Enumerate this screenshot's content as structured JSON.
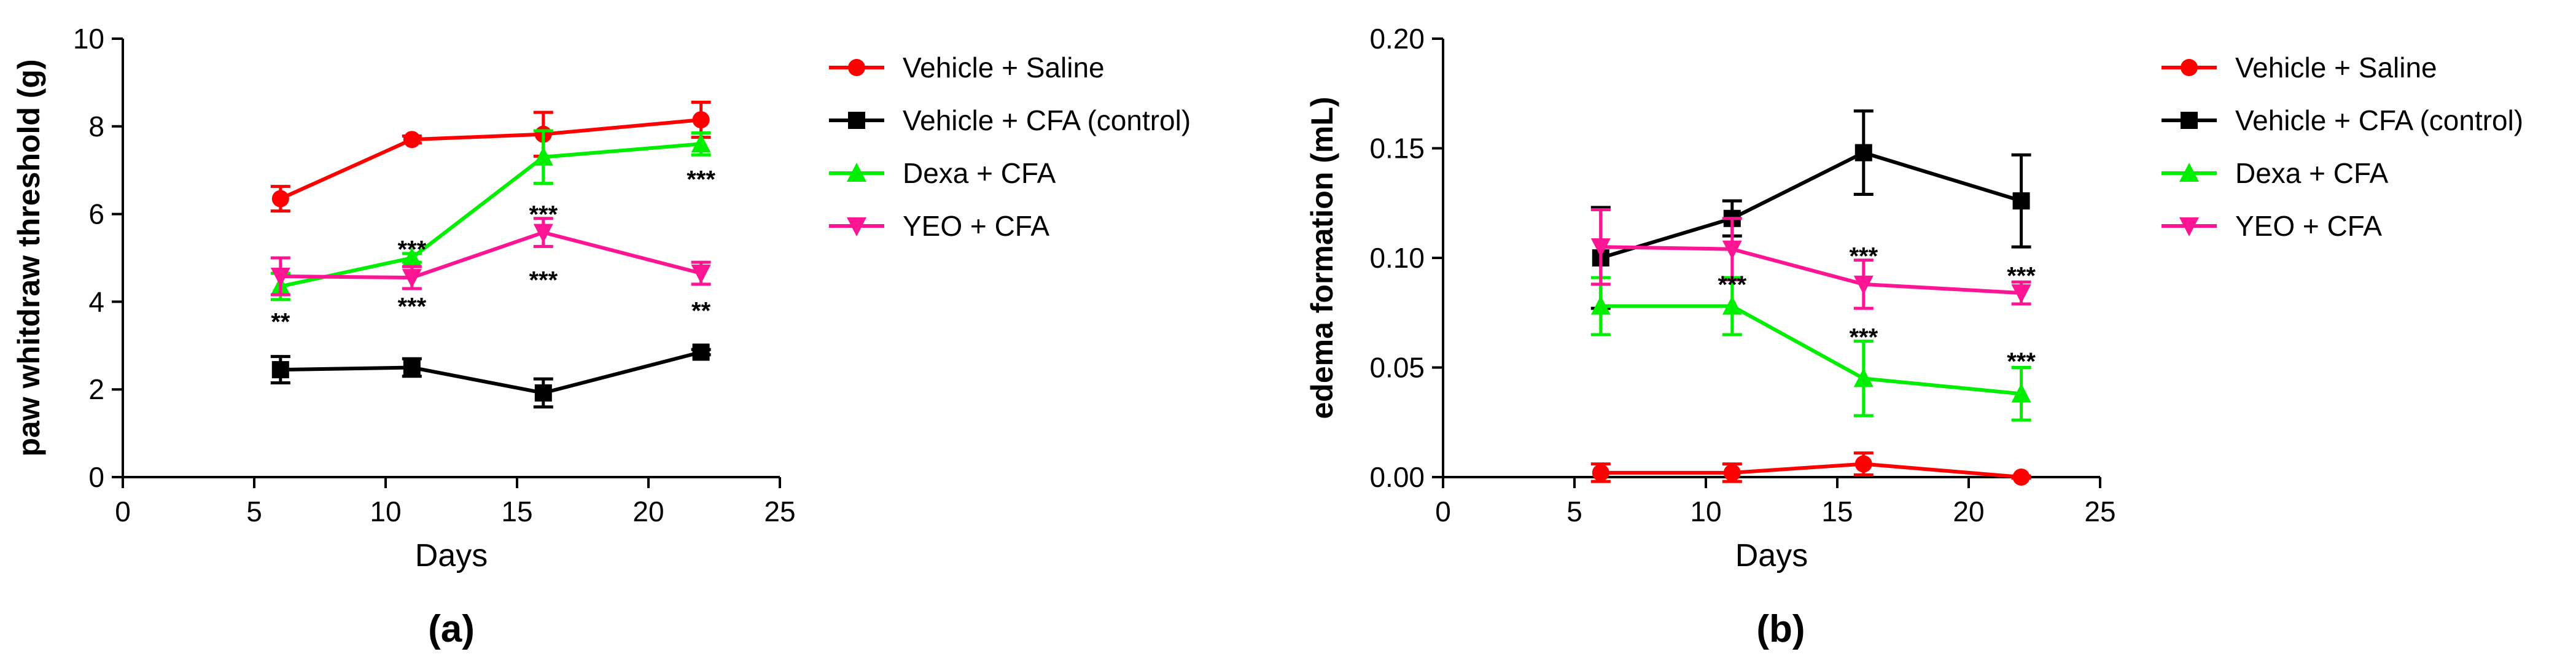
{
  "chart_data": [
    {
      "type": "line",
      "panel_label": "(a)",
      "xlabel": "Days",
      "ylabel": "paw whitdraw threshold (g)",
      "xlim": [
        0,
        25
      ],
      "ylim": [
        0,
        10
      ],
      "xticks": [
        "0",
        "5",
        "10",
        "15",
        "20",
        "25"
      ],
      "yticks": [
        "0",
        "2",
        "4",
        "6",
        "8",
        "10"
      ],
      "legend_position": "right",
      "series": [
        {
          "name": "Vehicle + Saline",
          "color": "#ff0000",
          "marker": "circle",
          "x": [
            6,
            11,
            16,
            22
          ],
          "y": [
            6.35,
            7.7,
            7.82,
            8.15
          ],
          "err": [
            0.28,
            0.08,
            0.5,
            0.4
          ]
        },
        {
          "name": "Vehicle + CFA (control)",
          "color": "#000000",
          "marker": "square",
          "x": [
            6,
            11,
            16,
            22
          ],
          "y": [
            2.45,
            2.5,
            1.92,
            2.85
          ],
          "err": [
            0.3,
            0.2,
            0.32,
            0.06
          ]
        },
        {
          "name": "Dexa + CFA",
          "color": "#00ee00",
          "marker": "triangle-up",
          "x": [
            6,
            11,
            16,
            22
          ],
          "y": [
            4.35,
            5.0,
            7.3,
            7.6
          ],
          "err": [
            0.3,
            0.1,
            0.6,
            0.25
          ]
        },
        {
          "name": "YEO + CFA",
          "color": "#ff1493",
          "marker": "triangle-down",
          "x": [
            6,
            11,
            16,
            22
          ],
          "y": [
            4.58,
            4.55,
            5.58,
            4.65
          ],
          "err": [
            0.42,
            0.25,
            0.32,
            0.25
          ]
        }
      ],
      "annotations": [
        {
          "x": 6,
          "y": 3.55,
          "text": "**"
        },
        {
          "x": 11,
          "y": 5.2,
          "text": "***"
        },
        {
          "x": 11,
          "y": 3.9,
          "text": "***"
        },
        {
          "x": 16,
          "y": 6.0,
          "text": "***"
        },
        {
          "x": 16,
          "y": 4.5,
          "text": "***"
        },
        {
          "x": 22,
          "y": 6.8,
          "text": "***"
        },
        {
          "x": 22,
          "y": 3.8,
          "text": "**"
        }
      ]
    },
    {
      "type": "line",
      "panel_label": "(b)",
      "xlabel": "Days",
      "ylabel": "edema formation (mL)",
      "xlim": [
        0,
        25
      ],
      "ylim": [
        0,
        0.2
      ],
      "xticks": [
        "0",
        "5",
        "10",
        "15",
        "20",
        "25"
      ],
      "yticks": [
        "0.00",
        "0.05",
        "0.10",
        "0.15",
        "0.20"
      ],
      "legend_position": "right",
      "series": [
        {
          "name": "Vehicle + Saline",
          "color": "#ff0000",
          "marker": "circle",
          "x": [
            6,
            11,
            16,
            22
          ],
          "y": [
            0.002,
            0.002,
            0.006,
            0.0
          ],
          "err": [
            0.004,
            0.004,
            0.005,
            0.0005
          ]
        },
        {
          "name": "Vehicle + CFA (control)",
          "color": "#000000",
          "marker": "square",
          "x": [
            6,
            11,
            16,
            22
          ],
          "y": [
            0.1,
            0.118,
            0.148,
            0.126
          ],
          "err": [
            0.023,
            0.008,
            0.019,
            0.021
          ]
        },
        {
          "name": "Dexa + CFA",
          "color": "#00ee00",
          "marker": "triangle-up",
          "x": [
            6,
            11,
            16,
            22
          ],
          "y": [
            0.078,
            0.078,
            0.045,
            0.038
          ],
          "err": [
            0.013,
            0.013,
            0.017,
            0.012
          ]
        },
        {
          "name": "YEO + CFA",
          "color": "#ff1493",
          "marker": "triangle-down",
          "x": [
            6,
            11,
            16,
            22
          ],
          "y": [
            0.105,
            0.104,
            0.088,
            0.084
          ],
          "err": [
            0.017,
            0.014,
            0.011,
            0.005
          ]
        }
      ],
      "annotations": [
        {
          "x": 11,
          "y": 0.088,
          "text": "***"
        },
        {
          "x": 16,
          "y": 0.101,
          "text": "***"
        },
        {
          "x": 16,
          "y": 0.064,
          "text": "***"
        },
        {
          "x": 22,
          "y": 0.092,
          "text": "***"
        },
        {
          "x": 22,
          "y": 0.053,
          "text": "***"
        }
      ]
    }
  ]
}
